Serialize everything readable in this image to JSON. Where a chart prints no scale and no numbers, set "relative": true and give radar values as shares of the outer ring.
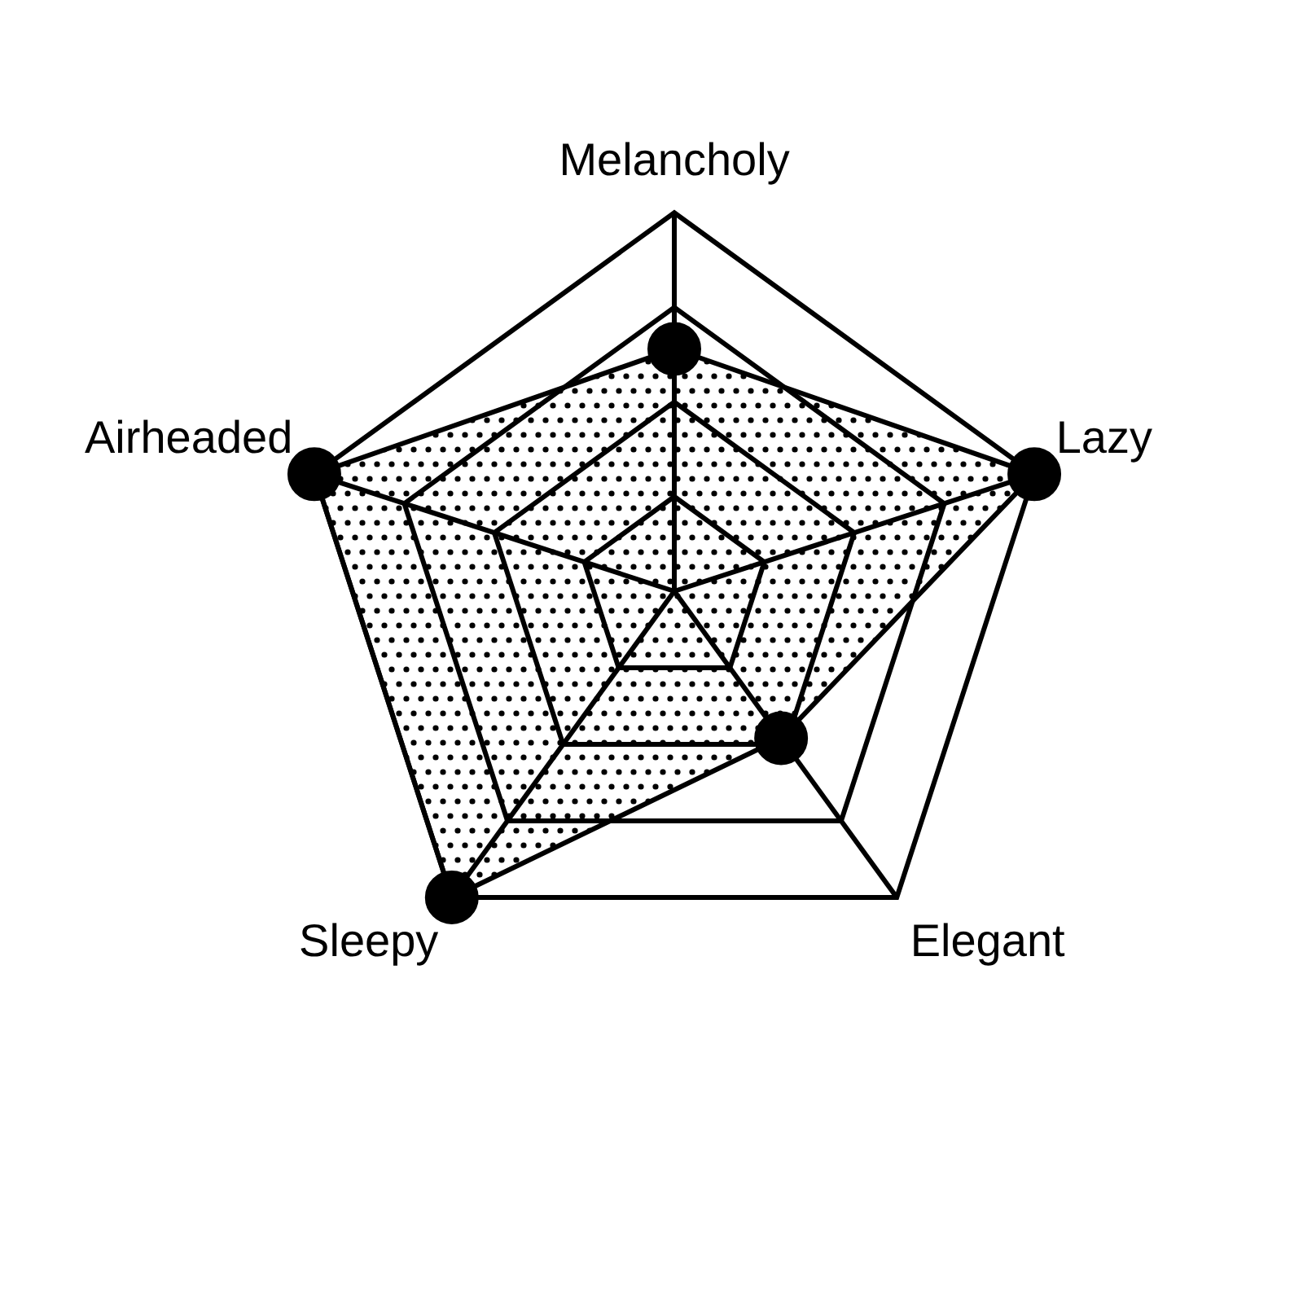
{
  "chart_data": {
    "type": "radar",
    "relative": true,
    "categories": [
      "Melancholy",
      "Lazy",
      "Elegant",
      "Sleepy",
      "Airheaded"
    ],
    "series": [
      {
        "color": "#000000",
        "values": [
          0.64,
          1,
          0.48,
          1,
          1
        ]
      }
    ],
    "grid": true,
    "marker": "circle",
    "legend": false
  }
}
